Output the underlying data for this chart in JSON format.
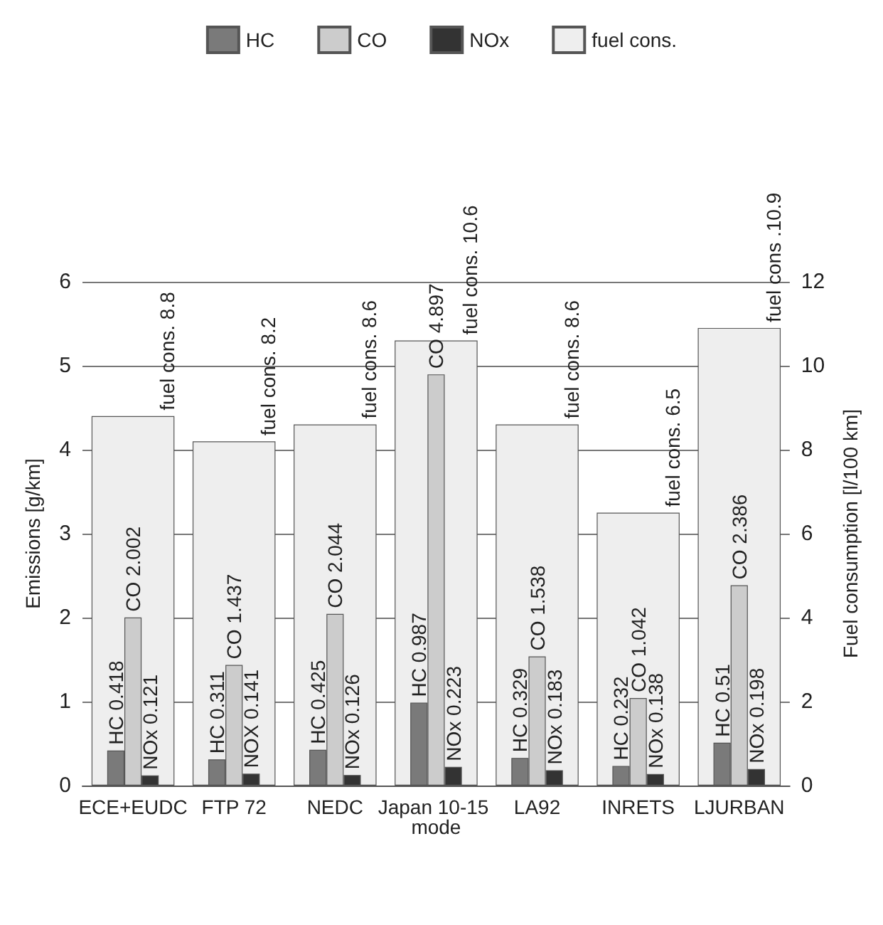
{
  "chart_data": {
    "type": "bar",
    "categories": [
      "ECE+EUDC",
      "FTP 72",
      "NEDC",
      "Japan 10-15 mode",
      "LA92",
      "INRETS",
      "LJURBAN"
    ],
    "ylabel": "Emissions [g/km]",
    "y2label": "Fuel consumption [l/100 km]",
    "ylim": [
      0,
      6
    ],
    "yticks": [
      0,
      1,
      2,
      3,
      4,
      5,
      6
    ],
    "y2lim": [
      0,
      12
    ],
    "y2ticks": [
      0,
      2,
      4,
      6,
      8,
      10,
      12
    ],
    "grid": "y",
    "legend": "top",
    "series": [
      {
        "name": "HC",
        "color": "#7a7a7a",
        "values": [
          0.418,
          0.311,
          0.425,
          0.987,
          0.329,
          0.232,
          0.51
        ],
        "value_labels": [
          "HC 0.418",
          "HC 0.311",
          "HC 0.425",
          "HC 0.987",
          "HC 0.329",
          "HC 0.232",
          "HC 0.51"
        ]
      },
      {
        "name": "CO",
        "color": "#cccccc",
        "values": [
          2.002,
          1.437,
          2.044,
          4.897,
          1.538,
          1.042,
          2.386
        ],
        "value_labels": [
          "CO 2.002",
          "CO 1.437",
          "CO 2.044",
          "CO 4.897",
          "CO 1.538",
          "CO 1.042",
          "CO 2.386"
        ]
      },
      {
        "name": "NOx",
        "color": "#333333",
        "values": [
          0.121,
          0.141,
          0.126,
          0.223,
          0.183,
          0.138,
          0.198
        ],
        "value_labels": [
          "NOx 0.121",
          "NOX 0.141",
          "NOx 0.126",
          "NOx 0.223",
          "NOx 0.183",
          "NOx 0.138",
          "NOx 0.198"
        ]
      },
      {
        "name": "fuel cons.",
        "color": "#eeeeee",
        "axis": "y2",
        "values": [
          8.8,
          8.2,
          8.6,
          10.6,
          8.6,
          6.5,
          10.9
        ],
        "value_labels": [
          "fuel cons. 8.8",
          "fuel cons. 8.2",
          "fuel cons. 8.6",
          "fuel cons. 10.6",
          "fuel cons. 8.6",
          "fuel cons. 6.5",
          "fuel cons .10.9"
        ]
      }
    ]
  }
}
